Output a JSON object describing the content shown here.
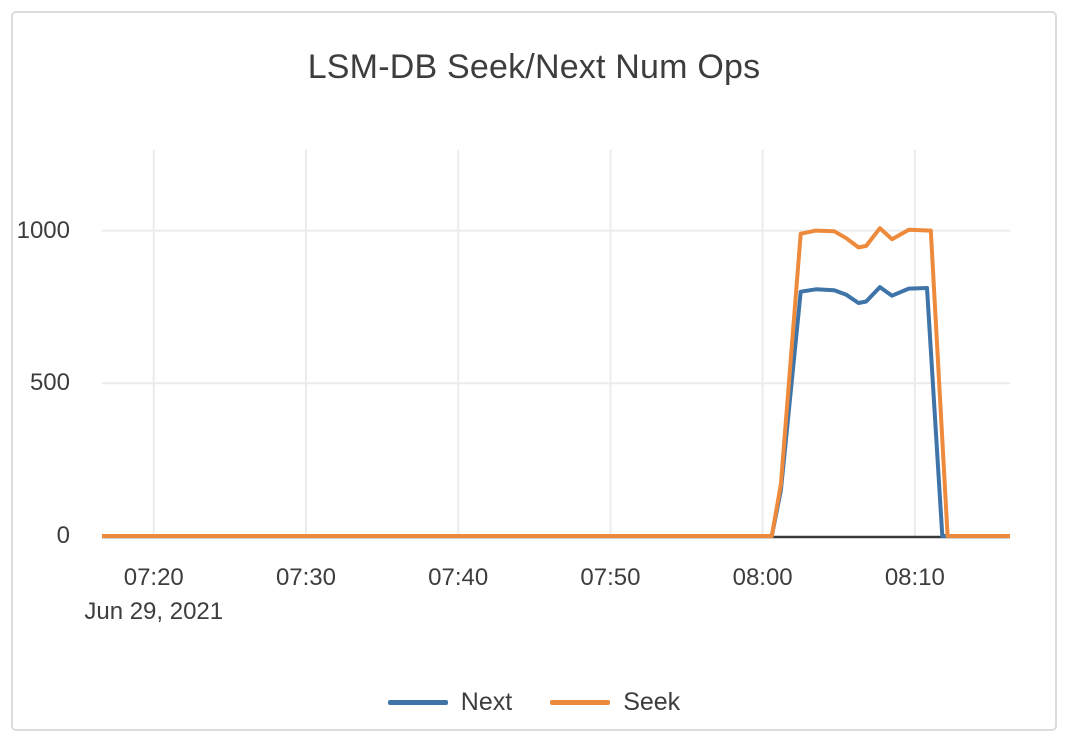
{
  "chart_data": {
    "type": "line",
    "title": "LSM-DB Seek/Next Num Ops",
    "x_axis_date_label": "Jun 29, 2021",
    "x_unit": "minutes after 07:00, Jun 29 2021",
    "x_range": [
      16.6,
      76.25
    ],
    "y_range": [
      0,
      1264
    ],
    "grid": true,
    "legend_position": "bottom-center",
    "x_ticks": [
      {
        "t": 20,
        "label": "07:20"
      },
      {
        "t": 30,
        "label": "07:30"
      },
      {
        "t": 40,
        "label": "07:40"
      },
      {
        "t": 50,
        "label": "07:50"
      },
      {
        "t": 60,
        "label": "08:00"
      },
      {
        "t": 70,
        "label": "08:10"
      }
    ],
    "y_ticks": [
      {
        "v": 0,
        "label": "0"
      },
      {
        "v": 500,
        "label": "500"
      },
      {
        "v": 1000,
        "label": "1000"
      }
    ],
    "series": [
      {
        "name": "Next",
        "color": "#3F74A9",
        "points": [
          [
            16.6,
            0
          ],
          [
            25,
            0
          ],
          [
            35,
            0
          ],
          [
            45,
            0
          ],
          [
            55,
            0
          ],
          [
            60.6,
            0
          ],
          [
            61.2,
            150
          ],
          [
            62.5,
            800
          ],
          [
            63.5,
            808
          ],
          [
            64.7,
            805
          ],
          [
            65.5,
            790
          ],
          [
            66.3,
            763
          ],
          [
            66.8,
            768
          ],
          [
            67.7,
            815
          ],
          [
            68.5,
            787
          ],
          [
            69.6,
            810
          ],
          [
            70.8,
            812
          ],
          [
            71.8,
            0
          ],
          [
            73,
            0
          ],
          [
            76.25,
            0
          ]
        ]
      },
      {
        "name": "Seek",
        "color": "#EE8A3B",
        "points": [
          [
            16.6,
            0
          ],
          [
            25,
            0
          ],
          [
            35,
            0
          ],
          [
            45,
            0
          ],
          [
            55,
            0
          ],
          [
            60.6,
            0
          ],
          [
            61.2,
            170
          ],
          [
            62.5,
            990
          ],
          [
            63.5,
            1000
          ],
          [
            64.7,
            998
          ],
          [
            65.5,
            975
          ],
          [
            66.3,
            945
          ],
          [
            66.8,
            950
          ],
          [
            67.7,
            1008
          ],
          [
            68.5,
            972
          ],
          [
            69.6,
            1003
          ],
          [
            71.05,
            1000
          ],
          [
            72.15,
            0
          ],
          [
            73,
            0
          ],
          [
            76.25,
            0
          ]
        ]
      }
    ],
    "colors": {
      "grid": "#ececec",
      "zero_line": "#3a3a3a",
      "text": "#3d3d3d",
      "card_border": "#dcdcdc",
      "background": "#ffffff"
    }
  }
}
